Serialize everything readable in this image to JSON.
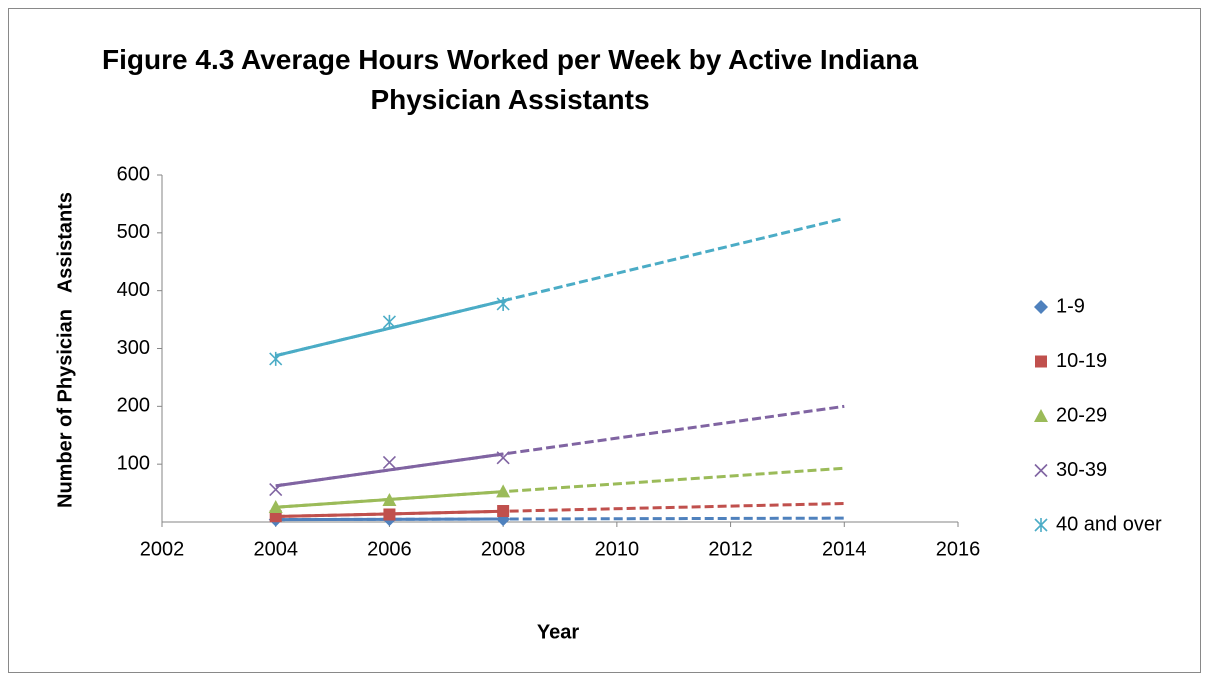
{
  "chart_data": {
    "type": "scatter",
    "title": "Figure 4.3 Average Hours Worked per Week by Active Indiana Physician Assistants",
    "x_label": "Year",
    "y_label": "Number of Physician   Assistants",
    "x": [
      2004,
      2006,
      2008
    ],
    "series": [
      {
        "name": "1-9",
        "color": "#4f81bd",
        "marker": "diamond",
        "values": [
          4,
          5,
          5
        ]
      },
      {
        "name": "10-19",
        "color": "#c0504d",
        "marker": "square",
        "values": [
          10,
          13,
          19
        ]
      },
      {
        "name": "20-29",
        "color": "#9bbb59",
        "marker": "triangle",
        "values": [
          26,
          38,
          53
        ]
      },
      {
        "name": "30-39",
        "color": "#8064a2",
        "marker": "x",
        "values": [
          56,
          103,
          111
        ]
      },
      {
        "name": "40 and over",
        "color": "#4bacc6",
        "marker": "star",
        "values": [
          282,
          346,
          377
        ]
      }
    ],
    "trendline": {
      "type": "linear",
      "forecast_to": 2014
    },
    "xlim": [
      2002,
      2016
    ],
    "xticks": [
      2002,
      2004,
      2006,
      2008,
      2010,
      2012,
      2014,
      2016
    ],
    "ylim": [
      0,
      600
    ],
    "yticks": [
      100,
      200,
      300,
      400,
      500,
      600
    ],
    "legend": "right"
  }
}
